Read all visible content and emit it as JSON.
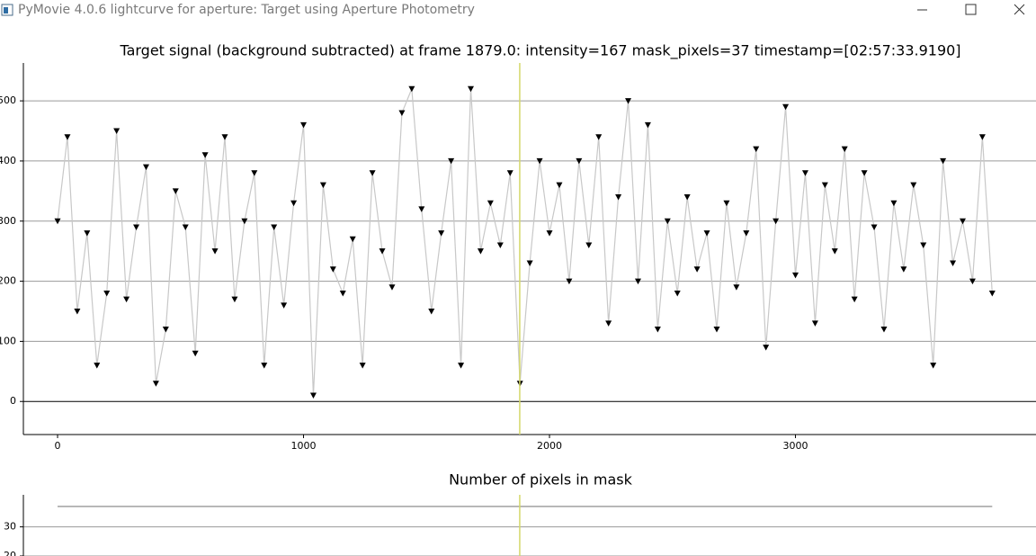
{
  "window_title": "PyMovie 4.0.6 lightcurve for aperture: Target using Aperture Photometry",
  "chart_data": [
    {
      "type": "scatter",
      "title": "Target signal (background subtracted) at frame 1879.0: intensity=167 mask_pixels=37 timestamp=[02:57:33.9190]",
      "x": [
        0,
        40,
        80,
        120,
        160,
        200,
        240,
        280,
        320,
        360,
        400,
        440,
        480,
        520,
        560,
        600,
        640,
        680,
        720,
        760,
        800,
        840,
        880,
        920,
        960,
        1000,
        1040,
        1080,
        1120,
        1160,
        1200,
        1240,
        1280,
        1320,
        1360,
        1400,
        1440,
        1480,
        1520,
        1560,
        1600,
        1640,
        1680,
        1720,
        1760,
        1800,
        1840,
        1880,
        1920,
        1960,
        2000,
        2040,
        2080,
        2120,
        2160,
        2200,
        2240,
        2280,
        2320,
        2360,
        2400,
        2440,
        2480,
        2520,
        2560,
        2600,
        2640,
        2680,
        2720,
        2760,
        2800,
        2840,
        2880,
        2920,
        2960,
        3000,
        3040,
        3080,
        3120,
        3160,
        3200,
        3240,
        3280,
        3320,
        3360,
        3400,
        3440,
        3480,
        3520,
        3560,
        3600,
        3640,
        3680,
        3720,
        3760,
        3800
      ],
      "series": [
        {
          "color": "#000000",
          "line_color": "#c8c8c8",
          "values": [
            300,
            440,
            150,
            280,
            60,
            180,
            450,
            170,
            290,
            390,
            30,
            120,
            350,
            290,
            80,
            410,
            250,
            440,
            170,
            300,
            380,
            60,
            290,
            160,
            330,
            460,
            10,
            360,
            220,
            180,
            270,
            60,
            380,
            250,
            190,
            480,
            520,
            320,
            150,
            280,
            400,
            60,
            520,
            250,
            330,
            260,
            380,
            30,
            230,
            400,
            280,
            360,
            200,
            400,
            260,
            440,
            130,
            340,
            500,
            200,
            460,
            120,
            300,
            180,
            340,
            220,
            280,
            120,
            330,
            190,
            280,
            420,
            90,
            300,
            490,
            210,
            380,
            130,
            360,
            250,
            420,
            170,
            380,
            290,
            120,
            330,
            220,
            360,
            260,
            60,
            400,
            230,
            300,
            200,
            440,
            180
          ]
        }
      ],
      "vline": {
        "value": 1879,
        "color": "#d4d86a"
      },
      "xlim": [
        -139,
        3978
      ],
      "xticks": [
        0,
        1000,
        2000,
        3000
      ],
      "ylim": [
        -55,
        563
      ],
      "yticks": [
        0,
        100,
        200,
        300,
        400,
        500
      ],
      "grid": true
    },
    {
      "type": "line",
      "title": "Number of pixels in mask",
      "x": [
        0,
        3800
      ],
      "series": [
        {
          "color": "#808080",
          "values": [
            37,
            37
          ]
        }
      ],
      "vline": {
        "value": 1879,
        "color": "#d4d86a"
      },
      "xlim": [
        -139,
        3978
      ],
      "ylim": [
        20,
        41
      ],
      "yticks": [
        20,
        30
      ],
      "grid": true
    }
  ]
}
